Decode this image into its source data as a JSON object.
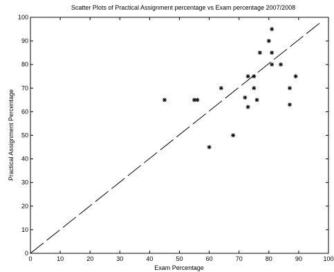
{
  "chart_data": {
    "type": "scatter",
    "title": "Scatter Plots of Practical Assignment percentage vs Exam percentage 2007/2008",
    "xlabel": "Exam Percentage",
    "ylabel": "Practical Assignment Percentage",
    "xlim": [
      0,
      100
    ],
    "ylim": [
      0,
      100
    ],
    "xticks": [
      "0",
      "10",
      "20",
      "30",
      "40",
      "50",
      "60",
      "70",
      "80",
      "90",
      "100"
    ],
    "yticks": [
      "0",
      "10",
      "20",
      "30",
      "40",
      "50",
      "60",
      "70",
      "80",
      "90",
      "100"
    ],
    "grid": false,
    "marker": "star",
    "points": [
      {
        "x": 45,
        "y": 65
      },
      {
        "x": 55,
        "y": 65
      },
      {
        "x": 56,
        "y": 65
      },
      {
        "x": 60,
        "y": 45
      },
      {
        "x": 64,
        "y": 70
      },
      {
        "x": 68,
        "y": 50
      },
      {
        "x": 72,
        "y": 66
      },
      {
        "x": 73,
        "y": 75
      },
      {
        "x": 73,
        "y": 62
      },
      {
        "x": 75,
        "y": 75
      },
      {
        "x": 75,
        "y": 70
      },
      {
        "x": 76,
        "y": 65
      },
      {
        "x": 77,
        "y": 85
      },
      {
        "x": 80,
        "y": 90
      },
      {
        "x": 81,
        "y": 95
      },
      {
        "x": 81,
        "y": 85
      },
      {
        "x": 81,
        "y": 80
      },
      {
        "x": 84,
        "y": 80
      },
      {
        "x": 87,
        "y": 70
      },
      {
        "x": 87,
        "y": 63
      },
      {
        "x": 89,
        "y": 75
      }
    ],
    "reference_line": {
      "style": "dashed",
      "x": [
        0,
        97
      ],
      "y": [
        0,
        97.5
      ]
    }
  }
}
